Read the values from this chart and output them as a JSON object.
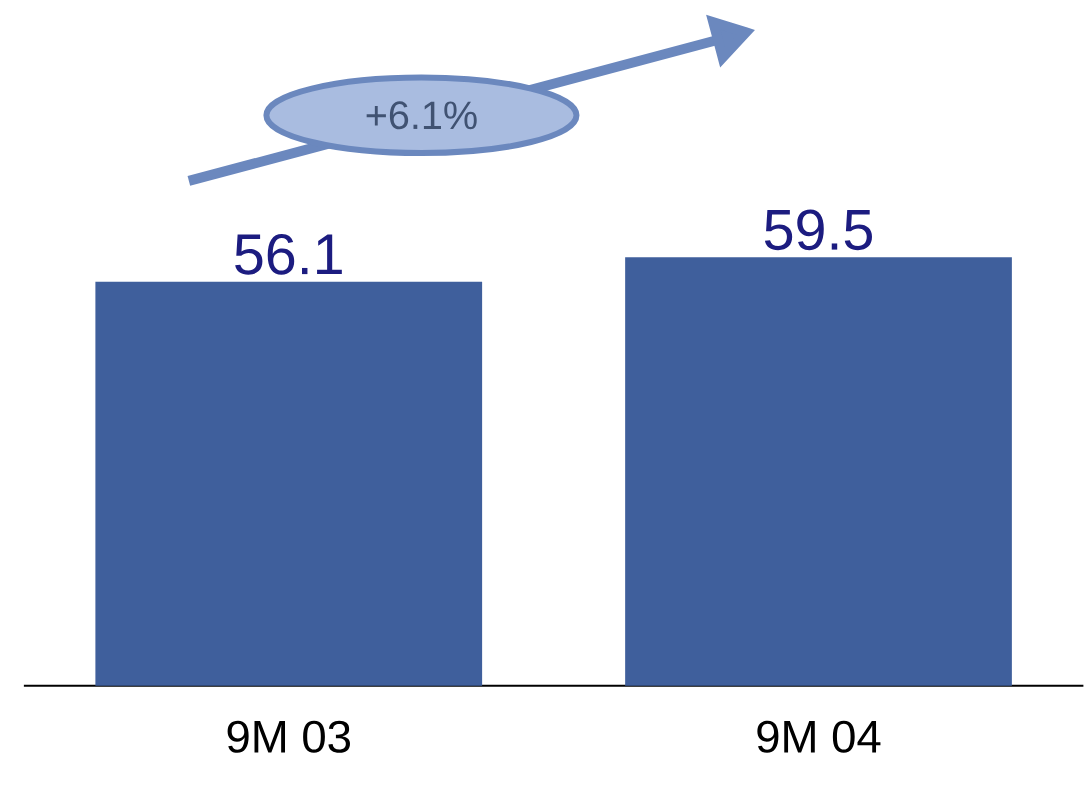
{
  "chart_data": {
    "type": "bar",
    "categories": [
      "9M 03",
      "9M 04"
    ],
    "values": [
      56.1,
      59.5
    ],
    "color": "#3f5f9c",
    "data_labels": true,
    "annotations": [
      "+6.1%"
    ]
  }
}
